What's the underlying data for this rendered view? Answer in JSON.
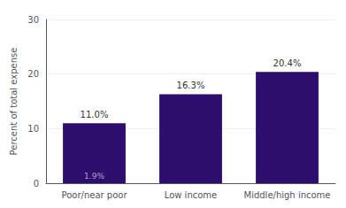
{
  "chart_data": {
    "type": "bar",
    "categories": [
      "Poor/near poor",
      "Low income",
      "Middle/high income"
    ],
    "values": [
      11.0,
      16.3,
      20.4
    ],
    "value_labels": [
      "11.0%",
      "16.3%",
      "20.4%"
    ],
    "data_labels": true,
    "color": "#2d0d6e",
    "ylabel": "Percent of total expense",
    "ylim": [
      0,
      30
    ],
    "yticks": [
      0,
      10,
      20,
      30
    ],
    "grid": true,
    "annotations": [
      {
        "text": "1.9%",
        "category": "Poor/near poor"
      }
    ]
  }
}
